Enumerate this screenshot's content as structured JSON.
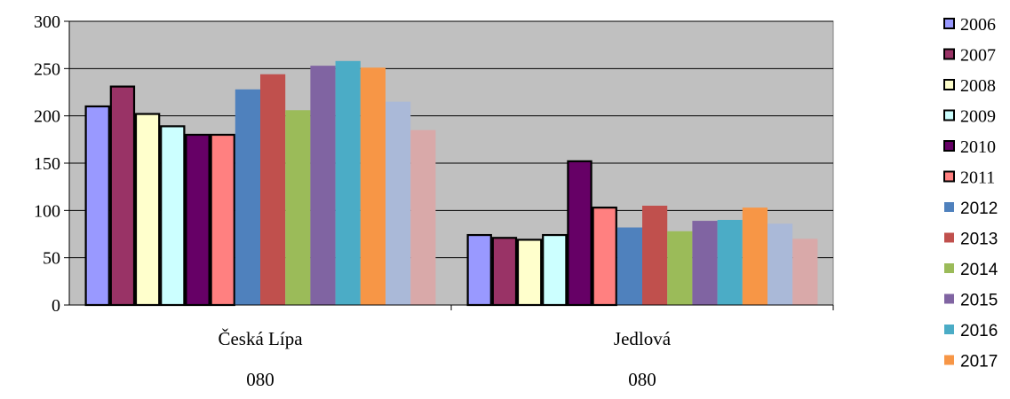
{
  "chart_data": {
    "type": "bar",
    "categories": [
      "Česká Lípa",
      "Jedlová"
    ],
    "category_sublabels": [
      "080",
      "080"
    ],
    "ylim": [
      0,
      300
    ],
    "yticks": [
      0,
      50,
      100,
      150,
      200,
      250,
      300
    ],
    "grid": true,
    "legend_position": "right",
    "series": [
      {
        "name": "2006",
        "values": [
          210,
          74
        ],
        "color": "#9999ff",
        "outlined": true
      },
      {
        "name": "2007",
        "values": [
          231,
          71
        ],
        "color": "#993366",
        "outlined": true
      },
      {
        "name": "2008",
        "values": [
          202,
          69
        ],
        "color": "#ffffcc",
        "outlined": true
      },
      {
        "name": "2009",
        "values": [
          189,
          74
        ],
        "color": "#ccffff",
        "outlined": true
      },
      {
        "name": "2010",
        "values": [
          180,
          152
        ],
        "color": "#660066",
        "outlined": true
      },
      {
        "name": "2011",
        "values": [
          180,
          103
        ],
        "color": "#ff8080",
        "outlined": true
      },
      {
        "name": "2012",
        "values": [
          228,
          82
        ],
        "color": "#4f81bd",
        "outlined": false
      },
      {
        "name": "2013",
        "values": [
          244,
          105
        ],
        "color": "#c0504d",
        "outlined": false
      },
      {
        "name": "2014",
        "values": [
          206,
          78
        ],
        "color": "#9bbb59",
        "outlined": false
      },
      {
        "name": "2015",
        "values": [
          253,
          89
        ],
        "color": "#8064a2",
        "outlined": false
      },
      {
        "name": "2016",
        "values": [
          258,
          90
        ],
        "color": "#4bacc6",
        "outlined": false
      },
      {
        "name": "2017",
        "values": [
          251,
          103
        ],
        "color": "#f79646",
        "outlined": false
      },
      {
        "name": "",
        "values": [
          215,
          86
        ],
        "color": "#aab9d8",
        "outlined": false
      },
      {
        "name": "",
        "values": [
          185,
          70
        ],
        "color": "#d9a9a9",
        "outlined": false
      }
    ]
  }
}
